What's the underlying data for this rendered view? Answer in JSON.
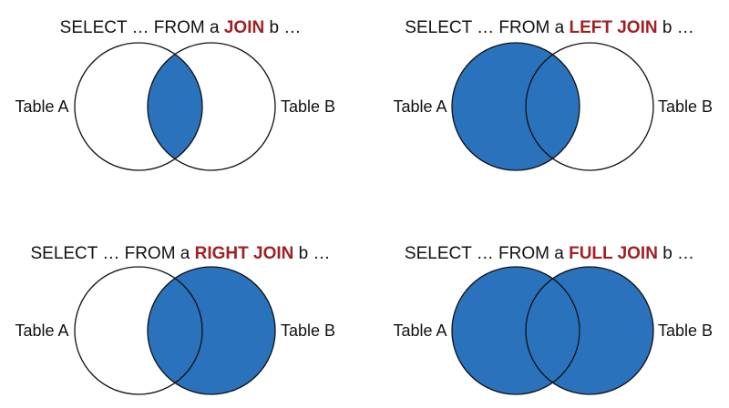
{
  "colors": {
    "fill": "#2a72bb",
    "stroke": "#111111",
    "keyword": "#a12024",
    "text": "#111111",
    "background": "#ffffff"
  },
  "panels": [
    {
      "id": "join",
      "query_prefix": "SELECT … FROM a ",
      "keyword": "JOIN",
      "query_suffix": " b …",
      "left_label": "Table A",
      "right_label": "Table B",
      "highlight": "intersection"
    },
    {
      "id": "left-join",
      "query_prefix": "SELECT … FROM a ",
      "keyword": "LEFT JOIN",
      "query_suffix": " b …",
      "left_label": "Table A",
      "right_label": "Table B",
      "highlight": "left"
    },
    {
      "id": "right-join",
      "query_prefix": "SELECT … FROM a ",
      "keyword": "RIGHT JOIN",
      "query_suffix": " b …",
      "left_label": "Table A",
      "right_label": "Table B",
      "highlight": "right"
    },
    {
      "id": "full-join",
      "query_prefix": "SELECT … FROM a ",
      "keyword": "FULL JOIN",
      "query_suffix": " b …",
      "left_label": "Table A",
      "right_label": "Table B",
      "highlight": "full"
    }
  ]
}
